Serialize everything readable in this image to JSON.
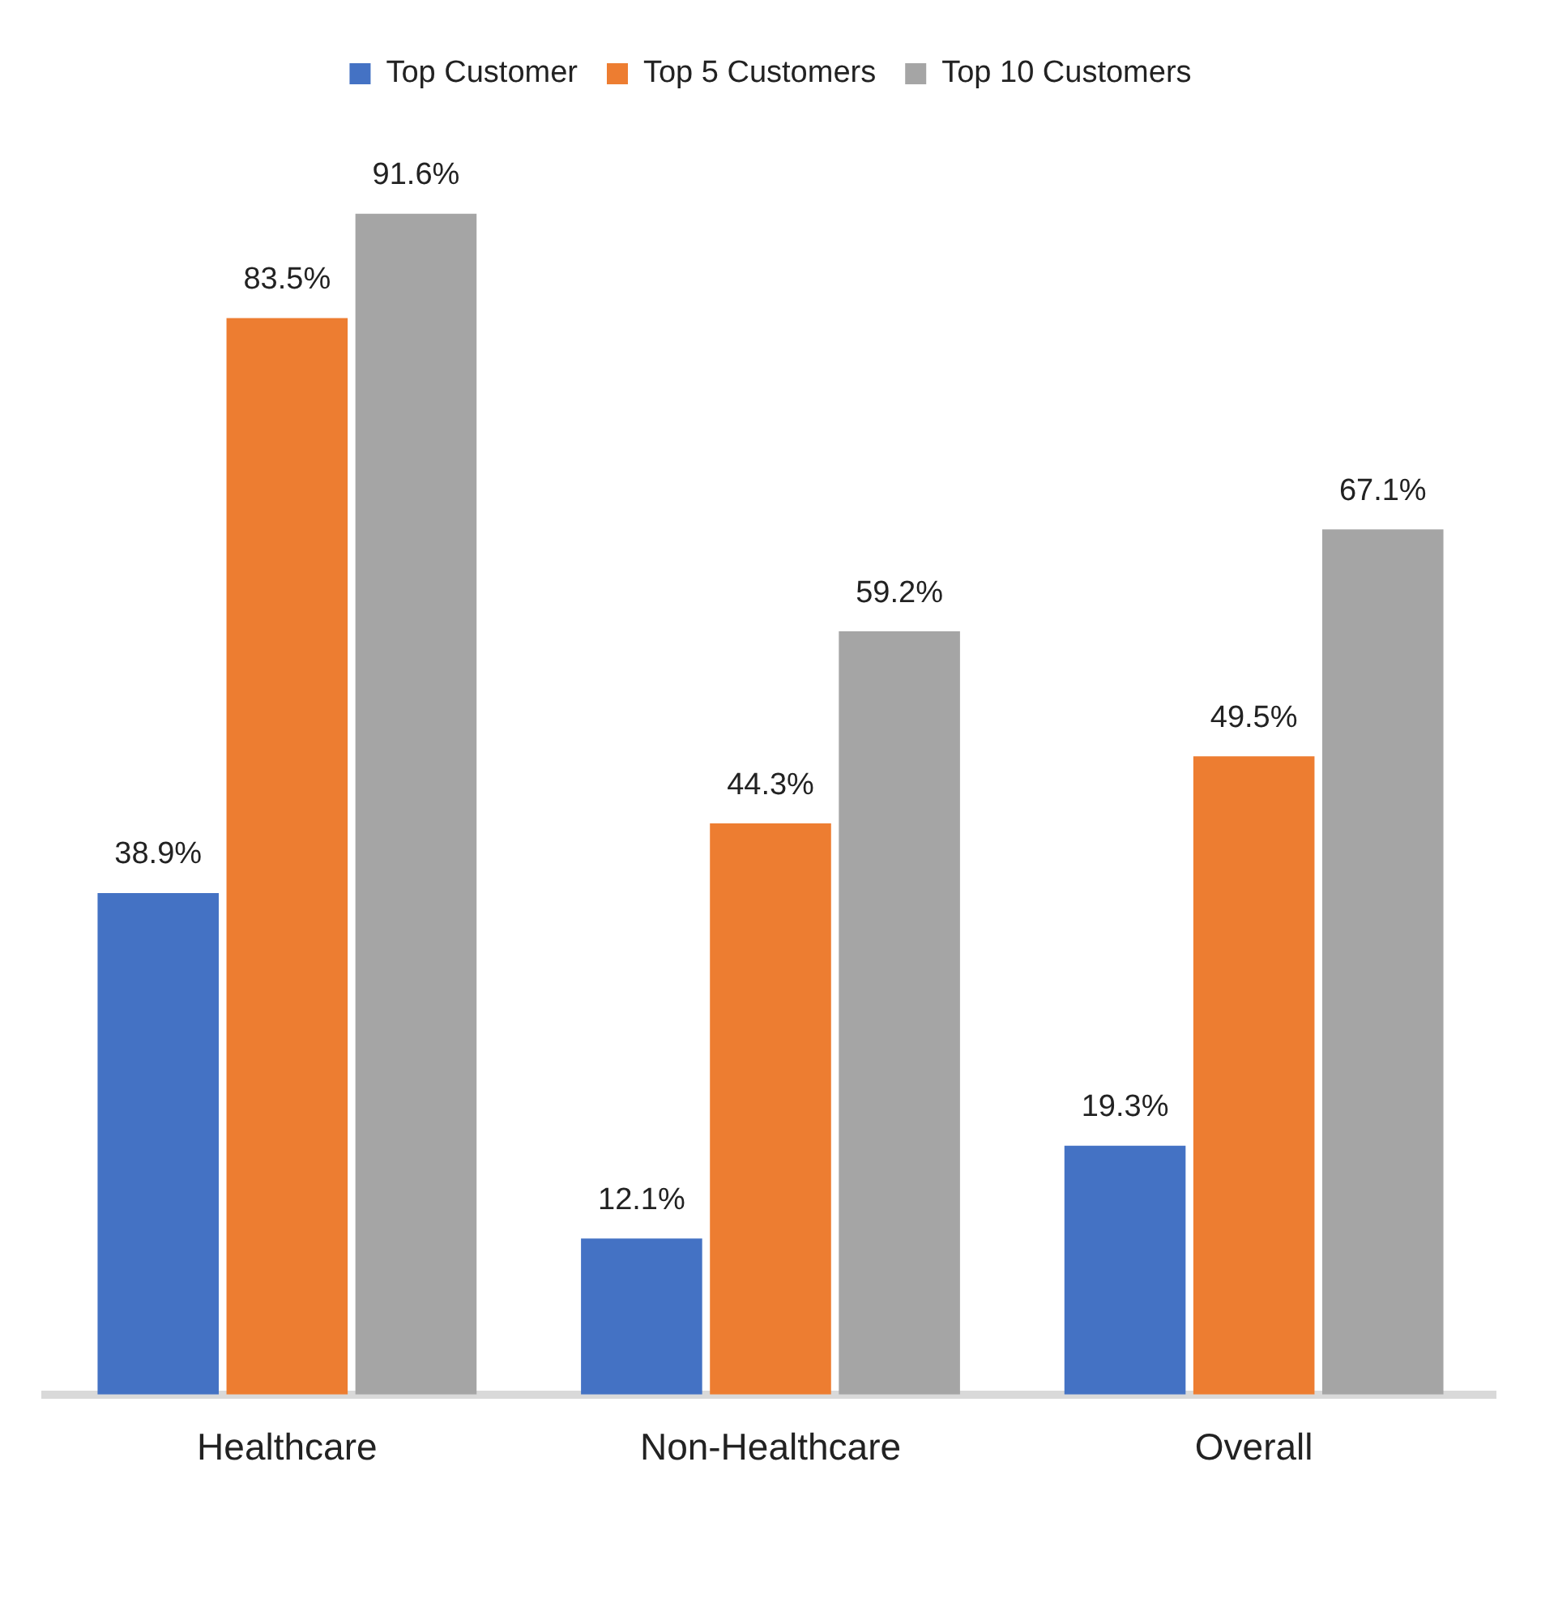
{
  "chart_data": {
    "type": "bar",
    "categories": [
      "Healthcare",
      "Non-Healthcare",
      "Overall"
    ],
    "series": [
      {
        "name": "Top Customer",
        "color": "#4472c4",
        "values": [
          38.9,
          12.1,
          19.3
        ],
        "value_labels": [
          "38.9%",
          "12.1%",
          "19.3%"
        ]
      },
      {
        "name": "Top 5 Customers",
        "color": "#ed7d31",
        "values": [
          83.5,
          44.3,
          49.5
        ],
        "value_labels": [
          "83.5%",
          "44.3%",
          "49.5%"
        ]
      },
      {
        "name": "Top 10 Customers",
        "color": "#a5a5a5",
        "values": [
          91.6,
          59.2,
          67.1
        ],
        "value_labels": [
          "91.6%",
          "59.2%",
          "67.1%"
        ]
      }
    ],
    "legend": "top",
    "grid": false,
    "tick_labels": "x"
  }
}
